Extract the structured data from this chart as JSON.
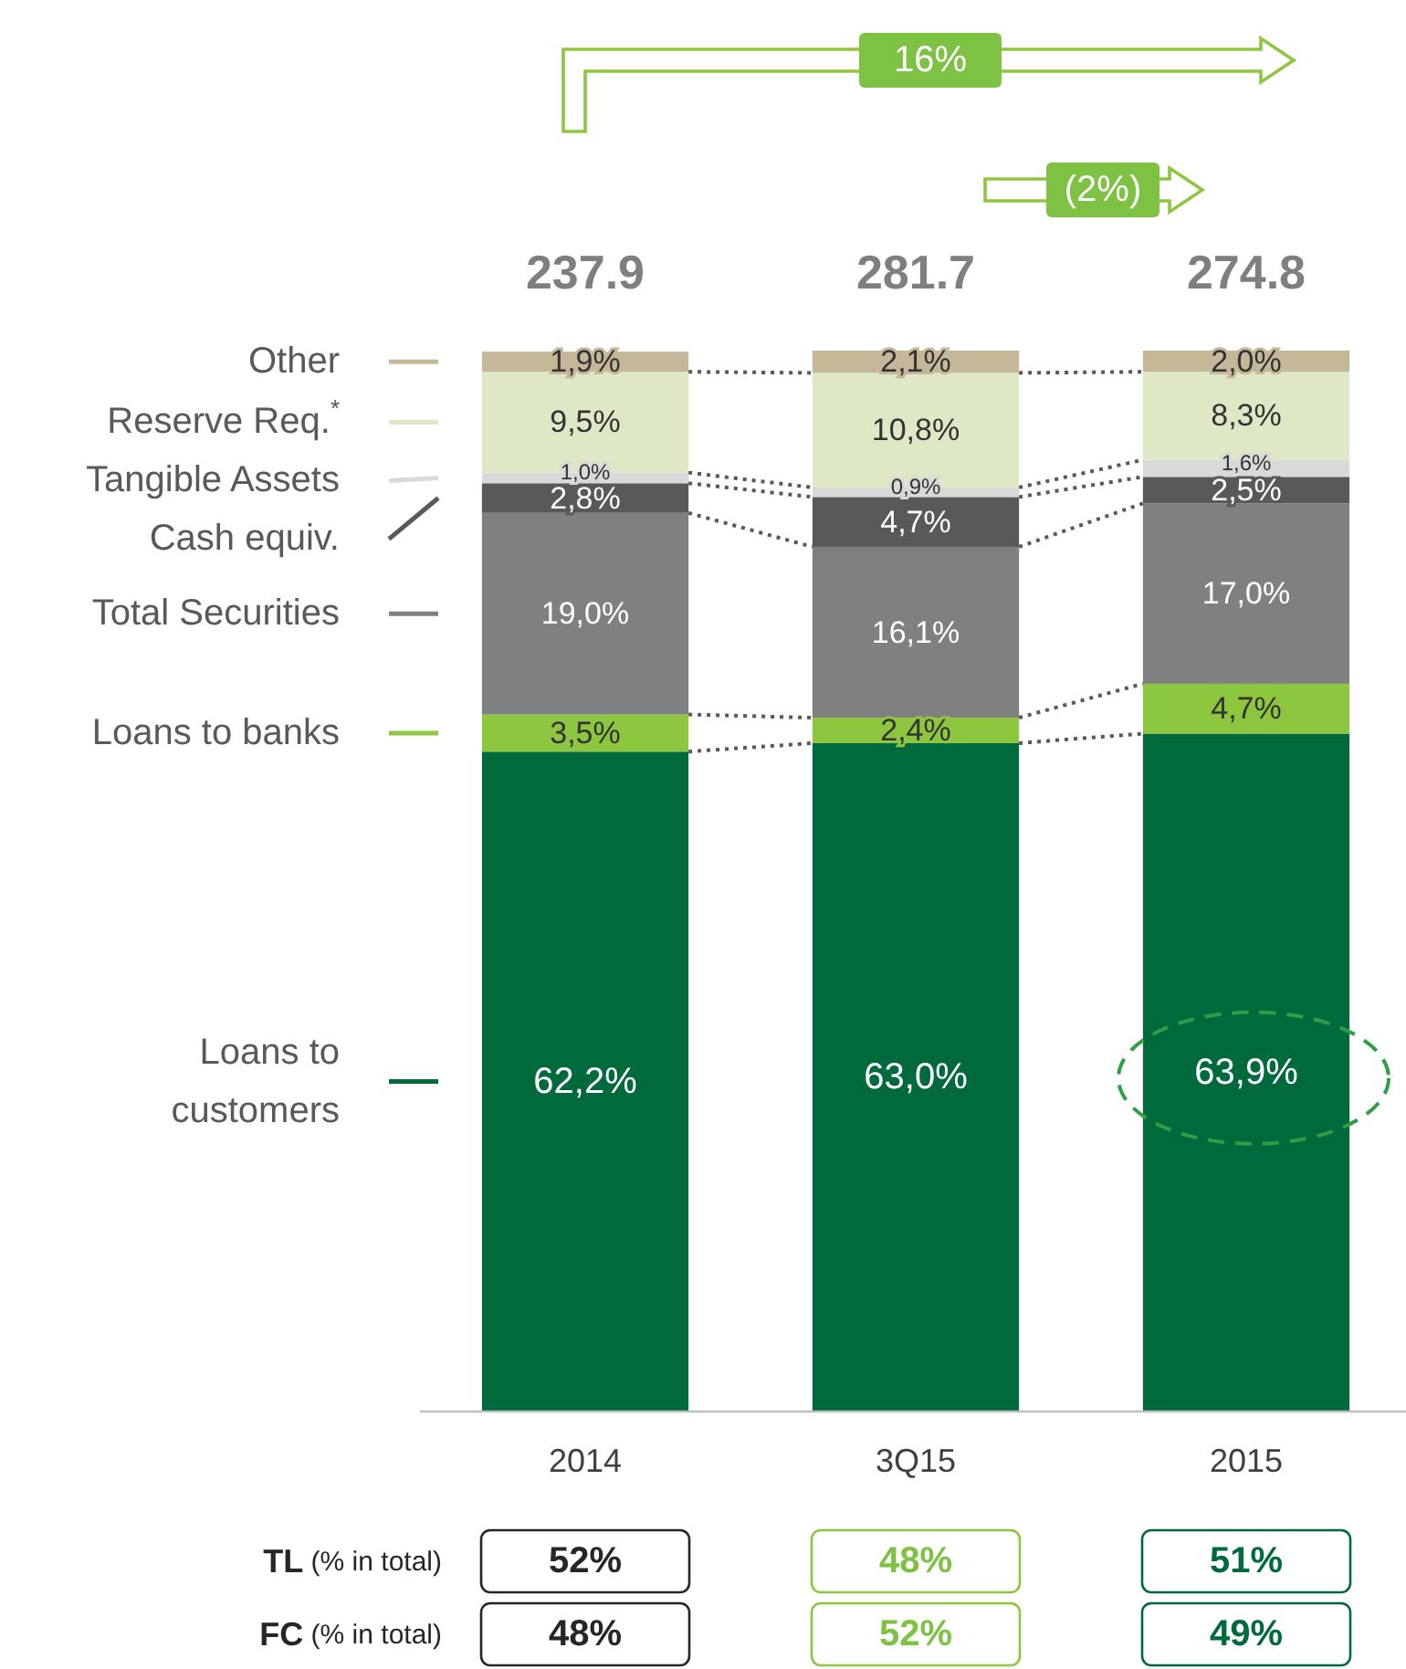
{
  "chart_data": {
    "type": "bar",
    "stacked": true,
    "legend": "left",
    "categories": [
      "2014",
      "3Q15",
      "2015"
    ],
    "series": [
      {
        "name": "Loans to customers",
        "color": "#006a3d",
        "values": [
          62.2,
          63.0,
          63.9
        ],
        "value_labels": [
          "62,2%",
          "63,0%",
          "63,9%"
        ]
      },
      {
        "name": "Loans to banks",
        "color": "#8dc63f",
        "values": [
          3.5,
          2.4,
          4.7
        ],
        "value_labels": [
          "3,5%",
          "2,4%",
          "4,7%"
        ]
      },
      {
        "name": "Total Securities",
        "color": "#808080",
        "values": [
          19.0,
          16.1,
          17.0
        ],
        "value_labels": [
          "19,0%",
          "16,1%",
          "17,0%"
        ]
      },
      {
        "name": "Cash equiv.",
        "color": "#595959",
        "values": [
          2.8,
          4.7,
          2.5
        ],
        "value_labels": [
          "2,8%",
          "4,7%",
          "2,5%"
        ]
      },
      {
        "name": "Tangible Assets",
        "color": "#d9d9d9",
        "values": [
          1.0,
          0.9,
          1.6
        ],
        "value_labels": [
          "1,0%",
          "0,9%",
          "1,6%"
        ]
      },
      {
        "name": "Reserve Req.$^{*}$",
        "color": "#dfe8c4",
        "values": [
          9.5,
          10.8,
          8.3
        ],
        "value_labels": [
          "9,5%",
          "10,8%",
          "8,3%"
        ]
      },
      {
        "name": "Other",
        "color": "#c4b898",
        "values": [
          1.9,
          2.1,
          2.0
        ],
        "value_labels": [
          "1,9%",
          "2,1%",
          "2,0%"
        ]
      }
    ],
    "annotations": [
      "237.9",
      "281.7",
      "274.8",
      "16%",
      "(2%)",
      "TL (% in total)",
      "52%",
      "48%",
      "51%",
      "FC (% in total)",
      "48%",
      "52%",
      "49%"
    ]
  }
}
